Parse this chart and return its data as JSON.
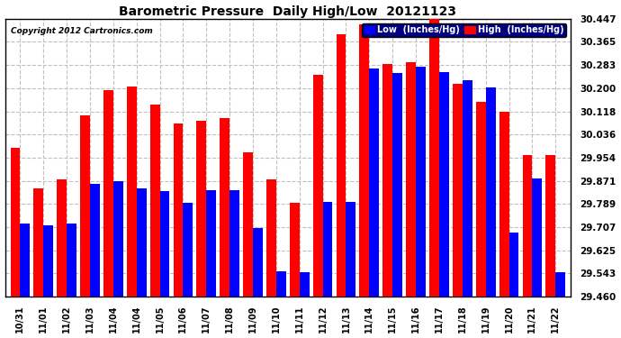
{
  "title": "Barometric Pressure  Daily High/Low  20121123",
  "copyright": "Copyright 2012 Cartronics.com",
  "legend_low": "Low  (Inches/Hg)",
  "legend_high": "High  (Inches/Hg)",
  "categories": [
    "10/31",
    "11/01",
    "11/02",
    "11/03",
    "11/04",
    "11/04",
    "11/05",
    "11/06",
    "11/07",
    "11/08",
    "11/09",
    "11/10",
    "11/11",
    "11/12",
    "11/13",
    "11/14",
    "11/15",
    "11/16",
    "11/17",
    "11/18",
    "11/19",
    "11/20",
    "11/21",
    "11/22"
  ],
  "low_values": [
    29.72,
    29.713,
    29.718,
    29.86,
    29.87,
    29.845,
    29.835,
    29.793,
    29.838,
    29.838,
    29.705,
    29.55,
    29.548,
    29.795,
    29.795,
    30.27,
    30.255,
    30.278,
    30.258,
    30.228,
    30.203,
    29.688,
    29.878,
    29.548
  ],
  "high_values": [
    29.987,
    29.843,
    29.876,
    30.103,
    30.193,
    30.207,
    30.143,
    30.075,
    30.085,
    30.095,
    29.972,
    29.875,
    29.793,
    30.247,
    30.393,
    30.427,
    30.285,
    30.292,
    30.455,
    30.215,
    30.153,
    30.118,
    29.962,
    29.962
  ],
  "ylim": [
    29.46,
    30.447
  ],
  "yticks": [
    29.46,
    29.543,
    29.625,
    29.707,
    29.789,
    29.871,
    29.954,
    30.036,
    30.118,
    30.2,
    30.283,
    30.365,
    30.447
  ],
  "bg_color": "#ffffff",
  "plot_bg_color": "#ffffff",
  "low_color": "#0000ff",
  "high_color": "#ff0000",
  "grid_color": "#c0c0c0",
  "title_color": "#000000",
  "copyright_color": "#000000",
  "border_color": "#000000",
  "legend_bg_color": "#000080"
}
